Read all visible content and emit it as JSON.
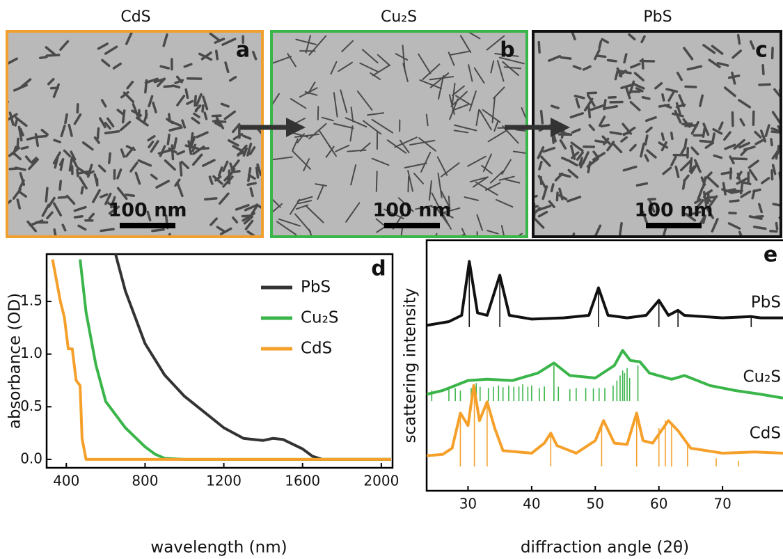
{
  "panels": [
    {
      "title": "CdS",
      "label": "a",
      "scale_bar": "100 nm",
      "color": "#f0a030"
    },
    {
      "title": "Cu₂S",
      "label": "b",
      "scale_bar": "100 nm",
      "color": "#3ab54a"
    },
    {
      "title": "PbS",
      "label": "c",
      "scale_bar": "100 nm",
      "color": "#111111"
    }
  ],
  "chart_data": [
    {
      "type": "line",
      "panel_label": "d",
      "xlabel": "wavelength (nm)",
      "ylabel": "absorbance (OD)",
      "xlim": [
        300,
        2050
      ],
      "ylim": [
        -0.08,
        1.95
      ],
      "xticks": [
        400,
        800,
        1200,
        1600,
        2000
      ],
      "yticks": [
        {
          "value": 0,
          "label": "0.0"
        },
        0.5,
        {
          "value": 1,
          "label": "1.0"
        },
        1.5
      ],
      "series": [
        {
          "name": "PbS",
          "color": "#333333",
          "x": [
            650,
            700,
            800,
            900,
            1000,
            1100,
            1200,
            1300,
            1400,
            1450,
            1500,
            1600,
            1650,
            1700,
            2050
          ],
          "values": [
            1.95,
            1.6,
            1.1,
            0.8,
            0.6,
            0.45,
            0.3,
            0.2,
            0.18,
            0.2,
            0.19,
            0.1,
            0.03,
            0.0,
            0.0
          ]
        },
        {
          "name": "Cu₂S",
          "color": "#3ab54a",
          "x": [
            470,
            500,
            550,
            600,
            700,
            800,
            850,
            900,
            1000,
            2050
          ],
          "values": [
            1.9,
            1.4,
            0.9,
            0.55,
            0.3,
            0.12,
            0.05,
            0.01,
            0.0,
            0.0
          ]
        },
        {
          "name": "CdS",
          "color": "#f5a02a",
          "x": [
            330,
            370,
            390,
            410,
            430,
            450,
            470,
            480,
            500,
            2050
          ],
          "values": [
            1.9,
            1.5,
            1.35,
            1.05,
            1.05,
            0.75,
            0.7,
            0.2,
            0.0,
            0.0
          ]
        }
      ]
    },
    {
      "type": "line",
      "panel_label": "e",
      "xlabel": "diffraction angle (2θ)",
      "ylabel": "scattering intensity",
      "xlim": [
        23.5,
        79.5
      ],
      "ylim": [
        0,
        100
      ],
      "xticks": [
        30,
        40,
        50,
        60,
        70
      ],
      "series": [
        {
          "name": "PbS",
          "color": "#111111",
          "x": [
            23.5,
            27,
            29,
            30.2,
            31.5,
            33,
            35,
            36.5,
            40,
            45,
            49,
            50.5,
            52,
            55,
            58,
            60,
            61.5,
            63,
            64,
            70,
            74.5,
            76,
            79.5
          ],
          "values": [
            66,
            67.5,
            70,
            91.5,
            71,
            70,
            86,
            70,
            68.5,
            69,
            70,
            81,
            70,
            69,
            70,
            76,
            70,
            72,
            70,
            69,
            69.5,
            69,
            69
          ],
          "stick_base": 65.3,
          "sticks": {
            "x": [
              30.2,
              35,
              50.5,
              60,
              63,
              74.5
            ],
            "values": [
              91,
              85.5,
              80.5,
              75.5,
              71.5,
              69
            ]
          }
        },
        {
          "name": "Cu₂S",
          "color": "#3ab54a",
          "x": [
            23.5,
            26,
            30,
            33,
            37,
            41,
            43.5,
            46,
            50,
            53,
            54.3,
            55.5,
            57,
            58.5,
            62,
            64,
            68,
            72,
            76,
            79.5
          ],
          "values": [
            38.5,
            40,
            44,
            44.5,
            44,
            47,
            51,
            46,
            45,
            50,
            56,
            52,
            51.5,
            47,
            44.5,
            46,
            42,
            40,
            38.5,
            37
          ],
          "stick_base": 35.8,
          "sticks": {
            "x": [
              24.3,
              27,
              28,
              28.8,
              30.5,
              31.3,
              31.9,
              33.2,
              34,
              34.8,
              35.5,
              36.4,
              37.2,
              38,
              38.6,
              39.4,
              40,
              41.2,
              42,
              43.5,
              44.2,
              46,
              47,
              48.5,
              49.7,
              50.6,
              51.5,
              52.8,
              53.4,
              53.9,
              54.3,
              54.6,
              55,
              55.4,
              56.7
            ],
            "values": [
              40,
              40.5,
              41,
              40,
              41,
              43,
              41.5,
              41,
              41.5,
              42,
              41.3,
              42,
              41.5,
              41.6,
              42.5,
              41.5,
              42,
              41,
              41.6,
              50,
              41.5,
              40.5,
              41,
              41,
              40.8,
              41,
              41,
              42,
              44,
              46,
              48,
              47,
              49,
              45,
              50
            ]
          }
        },
        {
          "name": "CdS",
          "color": "#f5a02a",
          "x": [
            23.5,
            26,
            27.5,
            28.8,
            30,
            30.9,
            31.8,
            33,
            34.2,
            35.5,
            40,
            42,
            43,
            44,
            47,
            50,
            51.3,
            53,
            55,
            56.5,
            57.5,
            59,
            61.5,
            63,
            65,
            70,
            75,
            79.5
          ],
          "values": [
            14,
            14.5,
            17,
            31,
            26,
            42,
            28,
            35.5,
            25,
            16,
            15,
            19,
            23,
            18,
            15,
            20,
            28,
            19,
            18.5,
            31,
            20,
            19,
            28,
            24,
            17,
            15,
            15.5,
            15
          ],
          "stick_base": 9.7,
          "sticks": {
            "x": [
              28.8,
              31,
              33,
              43,
              51,
              56.5,
              60,
              61,
              62,
              64.5,
              69,
              72.5
            ],
            "values": [
              31,
              42,
              35,
              22,
              27,
              30,
              25,
              28,
              27,
              18,
              13,
              12
            ]
          }
        }
      ]
    }
  ]
}
